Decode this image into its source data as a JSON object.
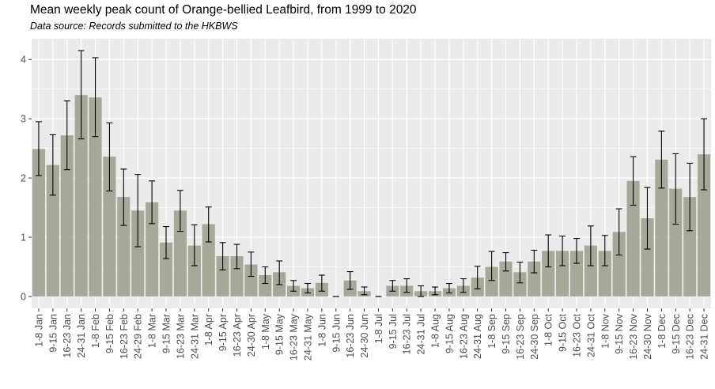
{
  "chart_data": {
    "type": "bar",
    "title": "Mean weekly peak count of Orange-bellied Leafbird, from 1999 to 2020",
    "subtitle": "Data source: Records submitted to the HKBWS",
    "xlabel": "",
    "ylabel": "",
    "ylim": [
      -0.2,
      4.35
    ],
    "yticks": [
      0,
      1,
      2,
      3,
      4
    ],
    "grid": true,
    "error_bars": true,
    "colors": {
      "bar": "#a6a899",
      "panel": "#ebebeb",
      "grid": "#ffffff",
      "errorbar": "#000000",
      "tick": "#4d4d4d"
    },
    "categories": [
      "1-8 Jan",
      "9-15 Jan",
      "16-23 Jan",
      "24-31 Jan",
      "1-8 Feb",
      "9-15 Feb",
      "16-23 Feb",
      "24-29 Feb",
      "1-8 Mar",
      "9-15 Mar",
      "16-23 Mar",
      "24-31 Mar",
      "1-8 Apr",
      "9-15 Apr",
      "16-23 Apr",
      "24-30 Apr",
      "1-8 May",
      "9-15 May",
      "16-23 May",
      "24-31 May",
      "1-8 Jun",
      "9-15 Jun",
      "16-23 Jun",
      "24-30 Jun",
      "1-8 Jul",
      "9-15 Jul",
      "16-23 Jul",
      "24-31 Jul",
      "1-8 Aug",
      "9-15 Aug",
      "16-23 Aug",
      "24-31 Aug",
      "1-8 Sep",
      "9-15 Sep",
      "16-23 Sep",
      "24-30 Sep",
      "1-8 Oct",
      "9-15 Oct",
      "16-23 Oct",
      "24-31 Oct",
      "1-8 Nov",
      "9-15 Nov",
      "16-23 Nov",
      "24-30 Nov",
      "1-8 Dec",
      "9-15 Dec",
      "16-23 Dec",
      "24-31 Dec"
    ],
    "values": [
      2.49,
      2.22,
      2.72,
      3.4,
      3.36,
      2.36,
      1.68,
      1.45,
      1.59,
      0.91,
      1.45,
      0.86,
      1.22,
      0.68,
      0.68,
      0.54,
      0.36,
      0.41,
      0.18,
      0.14,
      0.23,
      0.0,
      0.27,
      0.09,
      0.0,
      0.18,
      0.18,
      0.09,
      0.09,
      0.14,
      0.18,
      0.32,
      0.5,
      0.59,
      0.41,
      0.59,
      0.77,
      0.77,
      0.77,
      0.86,
      0.77,
      1.09,
      1.95,
      1.32,
      2.31,
      1.82,
      1.68,
      2.4
    ],
    "error_low": [
      2.04,
      1.71,
      2.14,
      2.66,
      2.7,
      1.78,
      1.2,
      0.84,
      1.23,
      0.64,
      1.1,
      0.52,
      0.92,
      0.45,
      0.47,
      0.34,
      0.22,
      0.2,
      0.09,
      0.06,
      0.09,
      0.0,
      0.12,
      0.03,
      0.0,
      0.09,
      0.07,
      0.0,
      0.03,
      0.06,
      0.07,
      0.13,
      0.27,
      0.43,
      0.23,
      0.4,
      0.5,
      0.52,
      0.56,
      0.52,
      0.52,
      0.7,
      1.54,
      0.8,
      1.83,
      1.22,
      1.11,
      1.8
    ],
    "error_high": [
      2.95,
      2.73,
      3.3,
      4.15,
      4.03,
      2.93,
      2.15,
      2.06,
      1.95,
      1.18,
      1.79,
      1.21,
      1.51,
      0.91,
      0.88,
      0.75,
      0.5,
      0.6,
      0.27,
      0.22,
      0.36,
      0.0,
      0.42,
      0.16,
      0.0,
      0.27,
      0.3,
      0.18,
      0.16,
      0.22,
      0.3,
      0.51,
      0.76,
      0.74,
      0.58,
      0.78,
      1.04,
      1.02,
      0.98,
      1.19,
      1.03,
      1.48,
      2.36,
      1.84,
      2.79,
      2.41,
      2.25,
      3.0
    ]
  }
}
